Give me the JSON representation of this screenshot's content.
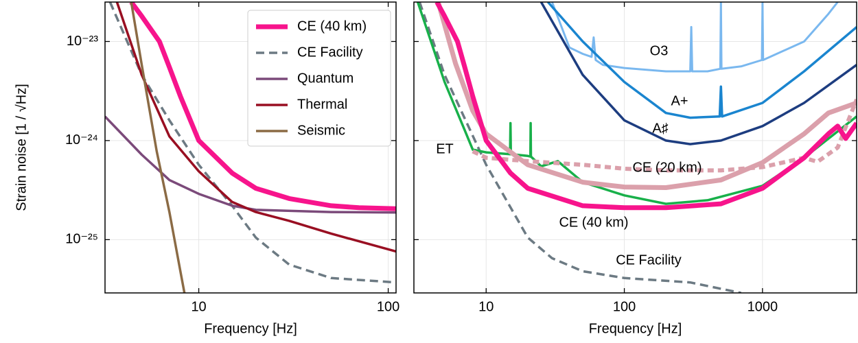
{
  "chart_data": [
    {
      "type": "line",
      "xlabel": "Frequency [Hz]",
      "ylabel": "Strain noise [1 / √Hz]",
      "log_x": true,
      "log_y": true,
      "grid": true,
      "legend": "upper right",
      "xlim": [
        3.2,
        110
      ],
      "ylim": [
        2.9e-26,
        2.5e-23
      ],
      "xticks": [
        10,
        100
      ],
      "yticks": [
        {
          "value": 1e-23,
          "label": "10⁻²³"
        },
        {
          "value": 1e-24,
          "label": "10⁻²⁴"
        },
        {
          "value": 1e-25,
          "label": "10⁻²⁵"
        }
      ],
      "series": [
        {
          "name": "CE (40 km)",
          "color": "#f7148c",
          "width": 7,
          "style": "solid",
          "x": [
            4.4,
            5,
            6.2,
            7,
            8,
            10,
            15,
            20,
            30,
            50,
            70,
            110
          ],
          "values": [
            2.5e-23,
            1.8e-23,
            1e-23,
            5.5e-24,
            2.8e-24,
            1e-24,
            4.7e-25,
            3.3e-25,
            2.6e-25,
            2.2e-25,
            2.1e-25,
            2.05e-25
          ]
        },
        {
          "name": "CE Facility",
          "color": "#6c7a83",
          "width": 3.5,
          "style": "dashed",
          "x": [
            3.4,
            5,
            7,
            10,
            15,
            20,
            30,
            50,
            110
          ],
          "values": [
            2.5e-23,
            4.6e-24,
            1.6e-24,
            5.7e-25,
            2.2e-25,
            1.05e-25,
            5.6e-26,
            4.1e-26,
            3.7e-26
          ]
        },
        {
          "name": "Quantum",
          "color": "#7b4a7a",
          "width": 3.5,
          "style": "solid",
          "x": [
            3.2,
            5,
            7,
            10,
            15,
            20,
            50,
            110
          ],
          "values": [
            1.75e-24,
            7.2e-25,
            4e-25,
            2.9e-25,
            2.2e-25,
            2e-25,
            1.9e-25,
            1.88e-25
          ]
        },
        {
          "name": "Thermal",
          "color": "#990f22",
          "width": 3.5,
          "style": "solid",
          "x": [
            3.7,
            5,
            7,
            10,
            15,
            20,
            30,
            50,
            110
          ],
          "values": [
            2.5e-23,
            4.6e-24,
            1.1e-24,
            4.9e-25,
            2.4e-25,
            1.9e-25,
            1.55e-25,
            1.15e-25,
            7.6e-26
          ]
        },
        {
          "name": "Seismic",
          "color": "#8b6b45",
          "width": 3.5,
          "style": "solid",
          "x": [
            4.4,
            5,
            6,
            7,
            8,
            8.4
          ],
          "values": [
            2.5e-23,
            5.8e-24,
            7.8e-25,
            1.9e-25,
            4.8e-26,
            2.9e-26
          ]
        }
      ]
    },
    {
      "type": "line",
      "xlabel": "Frequency [Hz]",
      "log_x": true,
      "log_y": true,
      "grid": true,
      "xlim": [
        3,
        4800
      ],
      "ylim": [
        2.9e-26,
        2.5e-23
      ],
      "xticks": [
        10,
        100,
        1000
      ],
      "series": [
        {
          "name": "O3",
          "color": "#7ab8ef",
          "width": 3,
          "style": "solid",
          "x": [
            30,
            40,
            50,
            58,
            60,
            62,
            70,
            100,
            200,
            300,
            305,
            310,
            400,
            495,
            500,
            505,
            700,
            990,
            1000,
            1010,
            2000,
            3000,
            3500
          ],
          "values": [
            2.5e-23,
            8.7e-24,
            7.5e-24,
            7e-24,
            1.1e-23,
            6.5e-24,
            5.8e-24,
            5.4e-24,
            5e-24,
            5e-24,
            1.4e-23,
            5e-24,
            5e-24,
            5.3e-24,
            2.5e-23,
            5.3e-24,
            5.6e-24,
            6.5e-24,
            2.5e-23,
            6.5e-24,
            1e-23,
            1.9e-23,
            2.5e-23
          ]
        },
        {
          "name": "A+",
          "color": "#1a85cf",
          "width": 3.5,
          "style": "solid",
          "x": [
            28,
            50,
            100,
            200,
            300,
            490,
            500,
            510,
            1000,
            2000,
            4800
          ],
          "values": [
            2.5e-23,
            1e-23,
            3.9e-24,
            1.9e-24,
            1.7e-24,
            1.75e-24,
            3.5e-24,
            1.75e-24,
            2.4e-24,
            5e-24,
            1.4e-23
          ]
        },
        {
          "name": "A♯",
          "color": "#1d3d80",
          "width": 3.5,
          "style": "solid",
          "x": [
            25,
            50,
            100,
            200,
            300,
            500,
            1000,
            2000,
            4800
          ],
          "values": [
            2.5e-23,
            4.6e-24,
            1.6e-24,
            1e-24,
            9.2e-25,
            1e-24,
            1.4e-24,
            2.4e-24,
            5.8e-24
          ]
        },
        {
          "name": "CE Facility",
          "color": "#6c7a83",
          "width": 3.5,
          "style": "dashed",
          "x": [
            3.3,
            5,
            10,
            20,
            30,
            50,
            100,
            300,
            700
          ],
          "values": [
            2.5e-23,
            4.6e-24,
            5.7e-25,
            1.05e-25,
            6.5e-26,
            4.8e-26,
            4.1e-26,
            3.7e-26,
            2.9e-26
          ]
        },
        {
          "name": "ET",
          "color": "#18b04a",
          "width": 3.5,
          "style": "solid",
          "x": [
            3.2,
            5,
            7,
            8,
            10,
            14.9,
            15,
            15.1,
            20,
            20.9,
            21,
            21.1,
            25,
            33,
            50,
            100,
            200,
            400,
            1000,
            2000,
            4800
          ],
          "values": [
            2.5e-23,
            3.9e-24,
            1.27e-24,
            8.1e-25,
            7.6e-25,
            7.3e-25,
            1.5e-24,
            7.3e-25,
            7e-25,
            6.9e-25,
            1.5e-24,
            6.9e-25,
            5.5e-25,
            6.2e-25,
            3.8e-25,
            2.8e-25,
            2.3e-25,
            2.5e-25,
            3.5e-25,
            6.7e-25,
            1.75e-24
          ]
        },
        {
          "color": "#dba0ab",
          "width": 6,
          "style": "dotted",
          "x": [
            8,
            10,
            20,
            50,
            100,
            200,
            500,
            1000,
            2000,
            2500,
            3500,
            4800
          ],
          "values": [
            7.8e-25,
            6.7e-25,
            6.2e-25,
            5.7e-25,
            5.2e-25,
            5e-25,
            5e-25,
            5.4e-25,
            6.7e-25,
            6.1e-25,
            8.5e-25,
            2.6e-24
          ]
        },
        {
          "name": "CE (20 km)",
          "color": "#dba0ab",
          "width": 7,
          "style": "solid",
          "x": [
            4.5,
            6,
            8,
            10,
            20,
            50,
            100,
            200,
            500,
            1000,
            2000,
            3000,
            4800
          ],
          "values": [
            2.5e-23,
            6e-24,
            2e-24,
            1.17e-24,
            5.7e-25,
            3.8e-25,
            3.4e-25,
            3.35e-25,
            4e-25,
            6e-25,
            1.17e-24,
            1.9e-24,
            2.4e-24
          ]
        },
        {
          "name": "CE (40 km)",
          "color": "#f7148c",
          "width": 7,
          "style": "solid",
          "x": [
            4.4,
            5,
            6.2,
            7,
            8,
            10,
            15,
            20,
            50,
            100,
            200,
            500,
            1000,
            2000,
            3000,
            3500,
            4000,
            4800
          ],
          "values": [
            2.5e-23,
            1.8e-23,
            1e-23,
            5.5e-24,
            2.8e-24,
            1e-24,
            4.7e-25,
            3.3e-25,
            2.2e-25,
            2.1e-25,
            2.1e-25,
            2.3e-25,
            3.3e-25,
            6.7e-25,
            1.17e-24,
            1.4e-24,
            1.05e-24,
            1.5e-24
          ]
        }
      ]
    }
  ]
}
